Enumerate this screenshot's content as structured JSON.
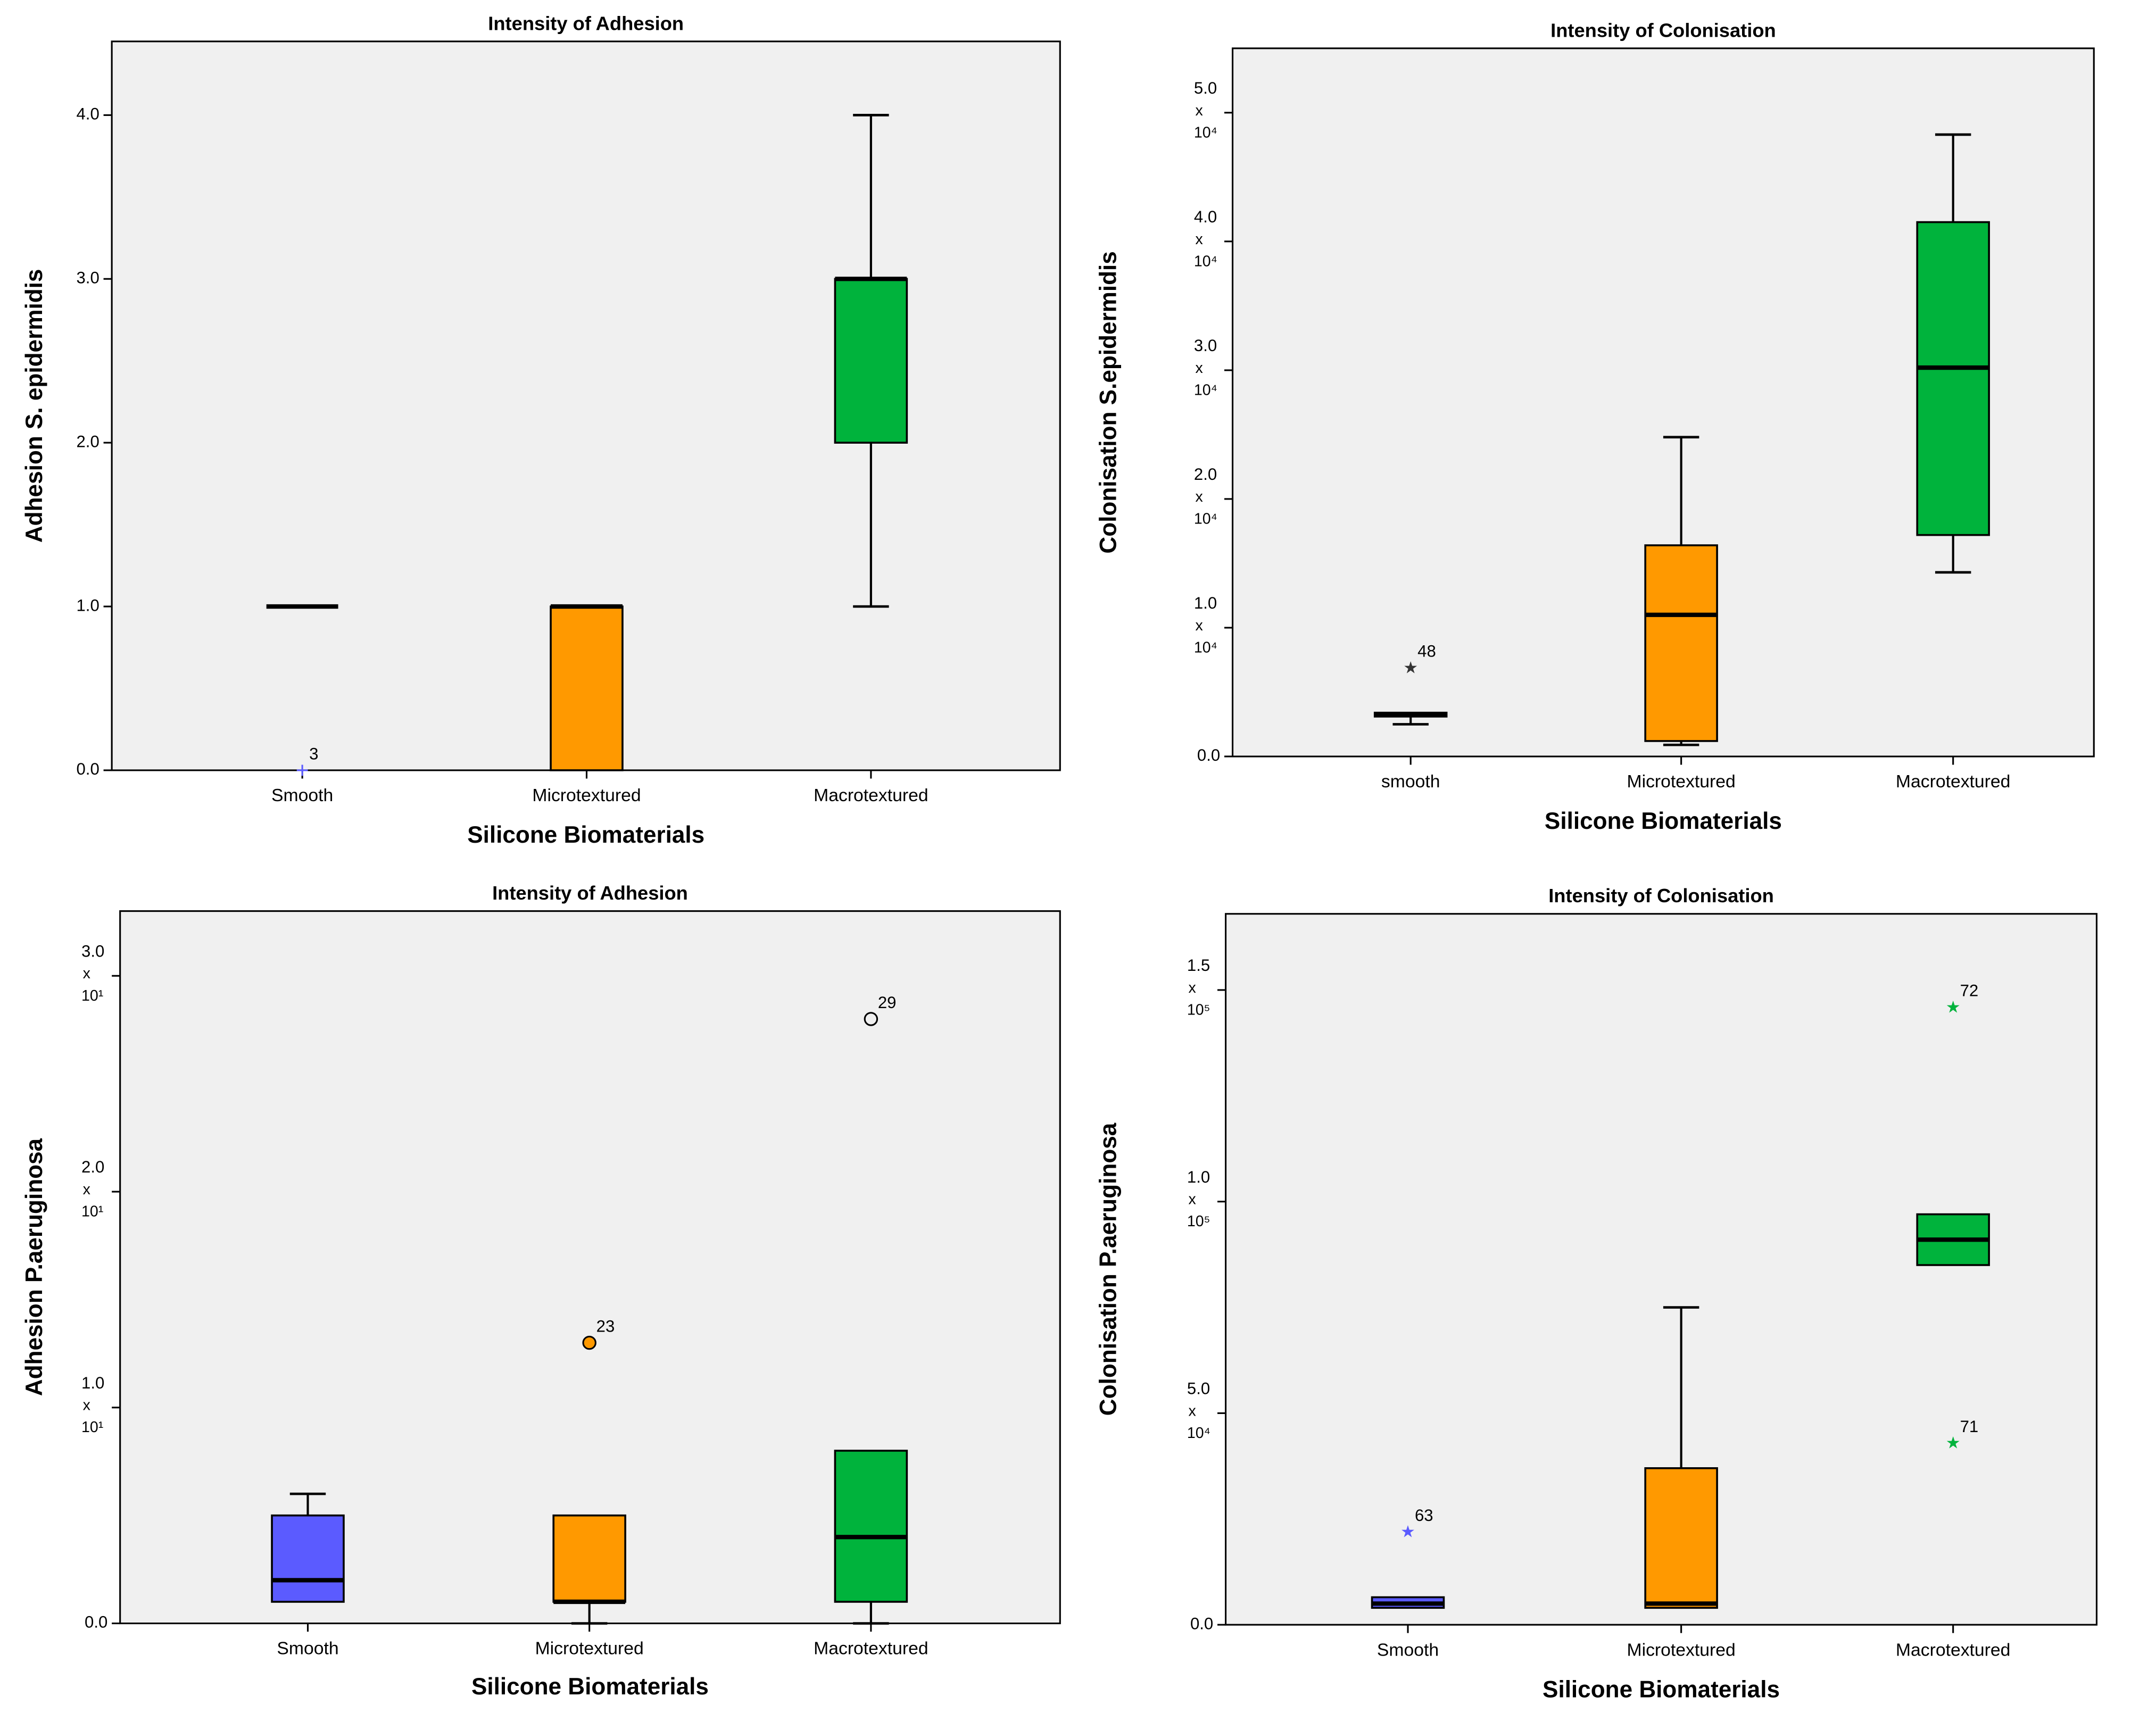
{
  "chart_data": [
    {
      "id": "p1",
      "type": "box",
      "title": "Intensity of Adhesion",
      "xlabel": "Silicone Biomaterials",
      "ylabel": "Adhesion S. epidermidis",
      "ylim": [
        0,
        4.45
      ],
      "categories": [
        "Smooth",
        "Microtextured",
        "Macrotextured"
      ],
      "yticks": [
        {
          "value": 0,
          "label": [
            "0.0"
          ]
        },
        {
          "value": 1,
          "label": [
            "1.0"
          ]
        },
        {
          "value": 2,
          "label": [
            "2.0"
          ]
        },
        {
          "value": 3,
          "label": [
            "3.0"
          ]
        },
        {
          "value": 4,
          "label": [
            "4.0"
          ]
        }
      ],
      "boxes": [
        {
          "category": "Smooth",
          "color": "#5b5bff",
          "q1": 1,
          "median": 1,
          "q3": 1,
          "whisker_low": 1,
          "whisker_high": 1
        },
        {
          "category": "Microtextured",
          "color": "#ff9900",
          "q1": 0,
          "median": 1,
          "q3": 1,
          "whisker_low": 0,
          "whisker_high": 1
        },
        {
          "category": "Macrotextured",
          "color": "#00b33c",
          "q1": 2,
          "median": 3,
          "q3": 3,
          "whisker_low": 1,
          "whisker_high": 4
        }
      ],
      "outliers": [
        {
          "category": "Smooth",
          "value": 0,
          "label": "3",
          "marker": "plus",
          "color": "#5b5bff"
        }
      ]
    },
    {
      "id": "p2",
      "type": "box",
      "title": "Intensity of Colonisation",
      "xlabel": "Silicone Biomaterials",
      "ylabel": "Colonisation S.epidermidis",
      "ylim": [
        0,
        55000
      ],
      "categories": [
        "smooth",
        "Microtextured",
        "Macrotextured"
      ],
      "yticks": [
        {
          "value": 0,
          "label": [
            "0.0"
          ]
        },
        {
          "value": 10000,
          "label": [
            "1.0",
            "x",
            "10⁴"
          ]
        },
        {
          "value": 20000,
          "label": [
            "2.0",
            "x",
            "10⁴"
          ]
        },
        {
          "value": 30000,
          "label": [
            "3.0",
            "x",
            "10⁴"
          ]
        },
        {
          "value": 40000,
          "label": [
            "4.0",
            "x",
            "10⁴"
          ]
        },
        {
          "value": 50000,
          "label": [
            "5.0",
            "x",
            "10⁴"
          ]
        }
      ],
      "boxes": [
        {
          "category": "smooth",
          "color": "#5b5bff",
          "q1": 3100,
          "median": 3300,
          "q3": 3400,
          "whisker_low": 2500,
          "whisker_high": 3400
        },
        {
          "category": "Microtextured",
          "color": "#ff9900",
          "q1": 1200,
          "median": 11000,
          "q3": 16400,
          "whisker_low": 900,
          "whisker_high": 24800
        },
        {
          "category": "Macrotextured",
          "color": "#00b33c",
          "q1": 17200,
          "median": 30200,
          "q3": 41500,
          "whisker_low": 14300,
          "whisker_high": 48300
        }
      ],
      "outliers": [
        {
          "category": "smooth",
          "value": 6900,
          "label": "48",
          "marker": "star",
          "color": "#333333"
        }
      ]
    },
    {
      "id": "p3",
      "type": "box",
      "title": "Intensity of Adhesion",
      "xlabel": "Silicone Biomaterials",
      "ylabel": "Adhesion P.aeruginosa",
      "ylim": [
        0,
        33
      ],
      "categories": [
        "Smooth",
        "Microtextured",
        "Macrotextured"
      ],
      "yticks": [
        {
          "value": 0,
          "label": [
            "0.0"
          ]
        },
        {
          "value": 10,
          "label": [
            "1.0",
            "x",
            "10¹"
          ]
        },
        {
          "value": 20,
          "label": [
            "2.0",
            "x",
            "10¹"
          ]
        },
        {
          "value": 30,
          "label": [
            "3.0",
            "x",
            "10¹"
          ]
        }
      ],
      "boxes": [
        {
          "category": "Smooth",
          "color": "#5b5bff",
          "q1": 1,
          "median": 2,
          "q3": 5,
          "whisker_low": 1,
          "whisker_high": 6
        },
        {
          "category": "Microtextured",
          "color": "#ff9900",
          "q1": 1,
          "median": 1,
          "q3": 5,
          "whisker_low": 0,
          "whisker_high": 5
        },
        {
          "category": "Macrotextured",
          "color": "#00b33c",
          "q1": 1,
          "median": 4,
          "q3": 8,
          "whisker_low": 0,
          "whisker_high": 8
        }
      ],
      "outliers": [
        {
          "category": "Microtextured",
          "value": 13,
          "label": "23",
          "marker": "circle",
          "color": "#ff9900"
        },
        {
          "category": "Macrotextured",
          "value": 28,
          "label": "29",
          "marker": "circle",
          "color": "#f0f0f0"
        }
      ]
    },
    {
      "id": "p4",
      "type": "box",
      "title": "Intensity of Colonisation",
      "xlabel": "Silicone Biomaterials",
      "ylabel": "Colonisation P.aeruginosa",
      "ylim": [
        0,
        168000
      ],
      "categories": [
        "Smooth",
        "Microtextured",
        "Macrotextured"
      ],
      "yticks": [
        {
          "value": 0,
          "label": [
            "0.0"
          ]
        },
        {
          "value": 50000,
          "label": [
            "5.0",
            "x",
            "10⁴"
          ]
        },
        {
          "value": 100000,
          "label": [
            "1.0",
            "x",
            "10⁵"
          ]
        },
        {
          "value": 150000,
          "label": [
            "1.5",
            "x",
            "10⁵"
          ]
        }
      ],
      "boxes": [
        {
          "category": "Smooth",
          "color": "#5b5bff",
          "q1": 4000,
          "median": 5000,
          "q3": 6500,
          "whisker_low": 4000,
          "whisker_high": 6500
        },
        {
          "category": "Microtextured",
          "color": "#ff9900",
          "q1": 4000,
          "median": 5000,
          "q3": 37000,
          "whisker_low": 4000,
          "whisker_high": 75000
        },
        {
          "category": "Macrotextured",
          "color": "#00b33c",
          "q1": 85000,
          "median": 91000,
          "q3": 97000,
          "whisker_low": 85000,
          "whisker_high": 97000
        }
      ],
      "outliers": [
        {
          "category": "Smooth",
          "value": 22000,
          "label": "63",
          "marker": "star",
          "color": "#5b5bff"
        },
        {
          "category": "Macrotextured",
          "value": 43000,
          "label": "71",
          "marker": "star",
          "color": "#00b33c"
        },
        {
          "category": "Macrotextured",
          "value": 146000,
          "label": "72",
          "marker": "star",
          "color": "#00b33c"
        }
      ]
    }
  ]
}
